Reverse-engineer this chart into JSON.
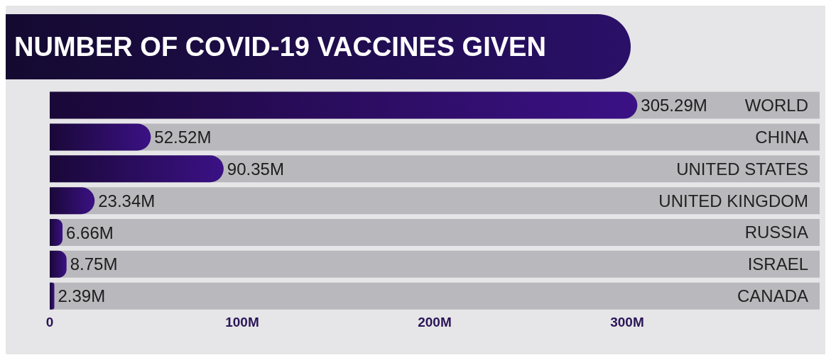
{
  "chart_data": {
    "type": "bar",
    "orientation": "horizontal",
    "title": "NUMBER OF COVID-19 VACCINES GIVEN",
    "categories": [
      "WORLD",
      "CHINA",
      "UNITED STATES",
      "UNITED KINGDOM",
      "RUSSIA",
      "ISRAEL",
      "CANADA"
    ],
    "values": [
      305.29,
      52.52,
      90.35,
      23.34,
      6.66,
      8.75,
      2.39
    ],
    "value_labels": [
      "305.29M",
      "52.52M",
      "90.35M",
      "23.34M",
      "6.66M",
      "8.75M",
      "2.39M"
    ],
    "color": "#3b1185",
    "xlim": [
      0,
      400
    ],
    "xticks": [
      0,
      {
        "value": 100,
        "label": "100M"
      },
      {
        "value": 200,
        "label": "200M"
      },
      {
        "value": 300,
        "label": "300M"
      }
    ]
  }
}
